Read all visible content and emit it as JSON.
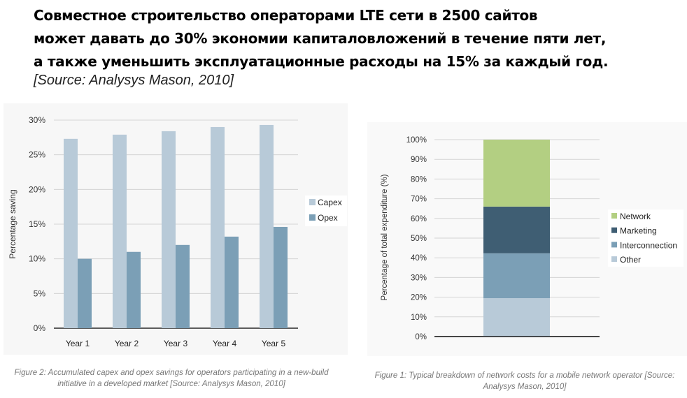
{
  "headline": {
    "line1": "Совместное строительство операторами  LTE сети в 2500 сайтов",
    "line2": "может давать до 30% экономии капиталовложений в течение пяти лет,",
    "line3": "а также уменьшить эксплуатационные расходы на 15% за каждый год.",
    "source": "[Source: Analysys Mason, 2010]"
  },
  "chart_data": [
    {
      "type": "bar",
      "title": "",
      "xlabel": "",
      "ylabel": "Percentage saving",
      "categories": [
        "Year 1",
        "Year 2",
        "Year 3",
        "Year 4",
        "Year 5"
      ],
      "series": [
        {
          "name": "Capex",
          "color": "#b8cad8",
          "values": [
            27.3,
            27.9,
            28.4,
            29.0,
            29.3
          ]
        },
        {
          "name": "Opex",
          "color": "#7b9fb6",
          "values": [
            10.0,
            11.0,
            12.0,
            13.2,
            14.6
          ]
        }
      ],
      "ylim": [
        0,
        30
      ],
      "yticks": [
        "0%",
        "5%",
        "10%",
        "15%",
        "20%",
        "25%",
        "30%"
      ],
      "legend": "right",
      "grid": true,
      "caption": "Figure 2: Accumulated capex and opex savings for operators participating in a new-build initiative in a developed market [Source: Analysys Mason, 2010]"
    },
    {
      "type": "bar",
      "stacked": true,
      "title": "",
      "xlabel": "",
      "ylabel": "Percentage of total expenditure (%)",
      "series": [
        {
          "name": "Other",
          "color": "#b8cad8",
          "value": 19.5
        },
        {
          "name": "Interconnection",
          "color": "#7b9fb6",
          "value": 22.8
        },
        {
          "name": "Marketing",
          "color": "#3f5e73",
          "value": 23.7
        },
        {
          "name": "Network",
          "color": "#b3cf82",
          "value": 34.0
        }
      ],
      "legend_order": [
        "Network",
        "Marketing",
        "Interconnection",
        "Other"
      ],
      "ylim": [
        0,
        100
      ],
      "yticks": [
        "0%",
        "10%",
        "20%",
        "30%",
        "40%",
        "50%",
        "60%",
        "70%",
        "80%",
        "90%",
        "100%"
      ],
      "legend": "right",
      "grid": true,
      "caption": "Figure 1: Typical breakdown of network costs for a mobile network operator [Source: Analysys Mason, 2010]"
    }
  ]
}
